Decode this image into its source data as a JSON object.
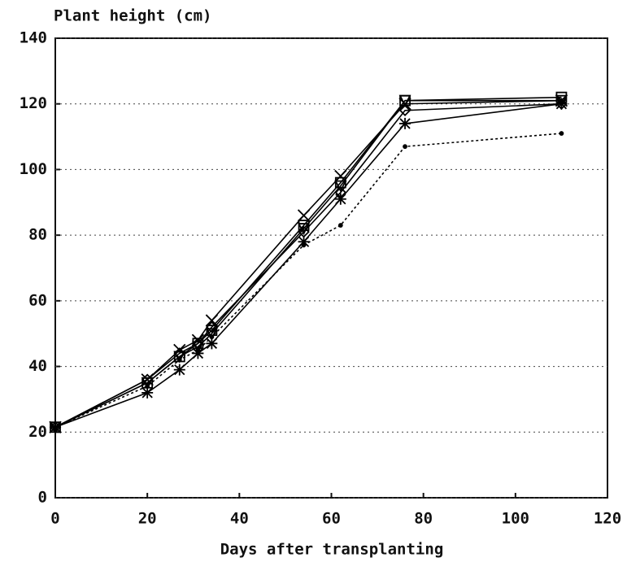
{
  "chart_data": {
    "type": "line",
    "ylabel": "Plant height (cm)",
    "xlabel": "Days after transplanting",
    "x": [
      0,
      20,
      27,
      31,
      34,
      54,
      62,
      76,
      110
    ],
    "xlim": [
      0,
      120
    ],
    "xticks": [
      0,
      20,
      40,
      60,
      80,
      100,
      120
    ],
    "ylim": [
      0,
      140
    ],
    "yticks": [
      0,
      20,
      40,
      60,
      80,
      100,
      120,
      140
    ],
    "grid": true,
    "series": [
      {
        "color": "#000000",
        "marker": "x",
        "values": [
          21.5,
          36,
          45,
          48,
          54,
          86,
          98,
          120,
          121
        ]
      },
      {
        "color": "#000000",
        "marker": "square",
        "values": [
          21.5,
          35,
          43,
          47,
          51,
          83,
          96,
          121,
          122
        ]
      },
      {
        "color": "#000000",
        "marker": "triangle",
        "values": [
          21.5,
          35,
          43,
          46,
          50,
          82,
          95,
          121,
          121
        ]
      },
      {
        "color": "#000000",
        "marker": "diamond",
        "values": [
          21.5,
          36,
          44,
          47,
          52,
          81,
          93,
          118,
          120
        ]
      },
      {
        "color": "#000000",
        "marker": "star",
        "values": [
          21.5,
          32,
          39,
          44,
          47,
          78,
          91,
          114,
          120
        ]
      },
      {
        "color": "#000000",
        "marker": "dot",
        "dashed": true,
        "values": [
          21.5,
          34,
          42,
          45,
          49,
          77,
          83,
          107,
          111
        ]
      }
    ]
  }
}
